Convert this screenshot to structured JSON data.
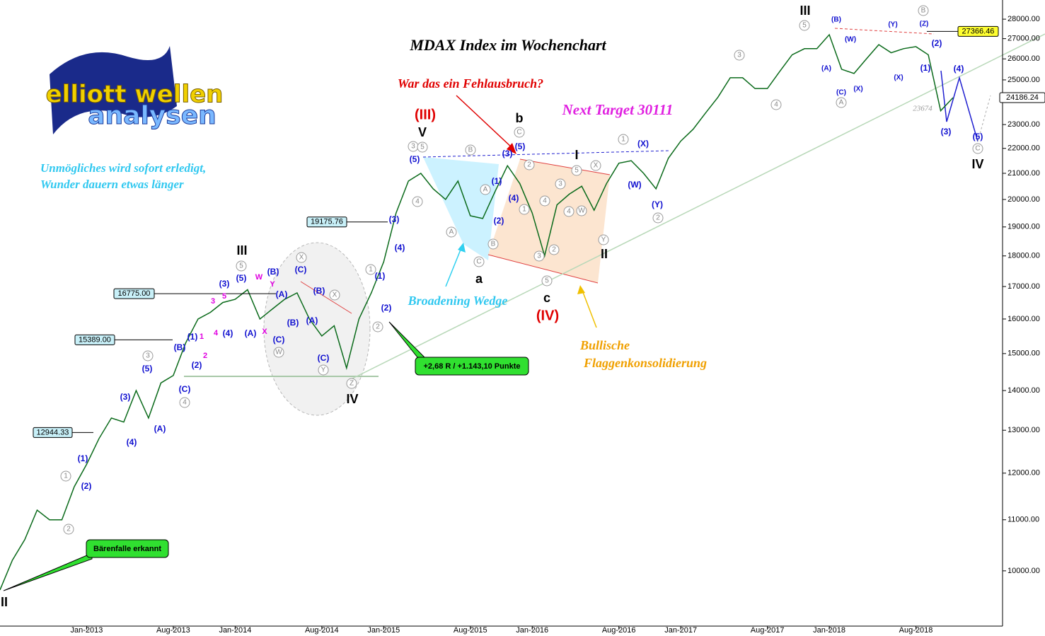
{
  "chart_data": {
    "type": "line",
    "title": "MDAX Index im Wochenchart",
    "color": "#0a6a1a",
    "log_scale": true,
    "x": [
      "2012-06",
      "2012-07",
      "2012-08",
      "2012-09",
      "2012-10",
      "2012-11",
      "2012-12",
      "2013-01",
      "2013-02",
      "2013-03",
      "2013-04",
      "2013-05",
      "2013-06",
      "2013-07",
      "2013-08",
      "2013-09",
      "2013-10",
      "2013-11",
      "2013-12",
      "2014-01",
      "2014-02",
      "2014-03",
      "2014-04",
      "2014-05",
      "2014-06",
      "2014-07",
      "2014-08",
      "2014-09",
      "2014-10",
      "2014-11",
      "2014-12",
      "2015-01",
      "2015-02",
      "2015-03",
      "2015-04",
      "2015-05",
      "2015-06",
      "2015-07",
      "2015-08",
      "2015-09",
      "2015-10",
      "2015-11",
      "2015-12",
      "2016-01",
      "2016-02",
      "2016-03",
      "2016-04",
      "2016-05",
      "2016-06",
      "2016-07",
      "2016-08",
      "2016-09",
      "2016-10",
      "2016-11",
      "2016-12",
      "2017-01",
      "2017-02",
      "2017-03",
      "2017-04",
      "2017-05",
      "2017-06",
      "2017-07",
      "2017-08",
      "2017-09",
      "2017-10",
      "2017-11",
      "2017-12",
      "2018-01",
      "2018-02",
      "2018-03",
      "2018-04",
      "2018-05",
      "2018-06",
      "2018-07",
      "2018-08",
      "2018-09",
      "2018-10",
      "2018-11"
    ],
    "values": [
      9650,
      10200,
      10600,
      11200,
      11000,
      11000,
      11700,
      12200,
      12800,
      13300,
      13200,
      14000,
      13300,
      14200,
      14400,
      15300,
      16000,
      16200,
      16500,
      16600,
      16900,
      16000,
      16300,
      16600,
      16800,
      16000,
      15500,
      15800,
      14600,
      16000,
      16800,
      17800,
      19500,
      20700,
      21000,
      20400,
      20000,
      20700,
      19400,
      19300,
      20300,
      21300,
      20600,
      19500,
      18000,
      19800,
      20200,
      20500,
      19600,
      20600,
      21400,
      21500,
      21000,
      20400,
      21600,
      22300,
      22800,
      23500,
      24200,
      25100,
      25100,
      24600,
      24600,
      25400,
      26200,
      26500,
      26500,
      27200,
      25500,
      25300,
      26000,
      26700,
      26300,
      26500,
      26600,
      26200,
      23600,
      24186
    ],
    "xlim": [
      "2012-06",
      "2019-03"
    ],
    "xticks": [
      {
        "value": "2013-01",
        "label": "Jan-2013"
      },
      {
        "value": "2013-08",
        "label": "Aug-2013"
      },
      {
        "value": "2014-01",
        "label": "Jan-2014"
      },
      {
        "value": "2014-08",
        "label": "Aug-2014"
      },
      {
        "value": "2015-01",
        "label": "Jan-2015"
      },
      {
        "value": "2015-08",
        "label": "Aug-2015"
      },
      {
        "value": "2016-01",
        "label": "Jan-2016"
      },
      {
        "value": "2016-08",
        "label": "Aug-2016"
      },
      {
        "value": "2017-01",
        "label": "Jan-2017"
      },
      {
        "value": "2017-08",
        "label": "Aug-2017"
      },
      {
        "value": "2018-01",
        "label": "Jan-2018"
      },
      {
        "value": "2018-08",
        "label": "Aug-2018"
      }
    ],
    "ylim": [
      9020,
      29020
    ],
    "yticks": [
      {
        "value": 10000,
        "label": "10000.00"
      },
      {
        "value": 11000,
        "label": "11000.00"
      },
      {
        "value": 12000,
        "label": "12000.00"
      },
      {
        "value": 13000,
        "label": "13000.00"
      },
      {
        "value": 14000,
        "label": "14000.00"
      },
      {
        "value": 15000,
        "label": "15000.00"
      },
      {
        "value": 16000,
        "label": "16000.00"
      },
      {
        "value": 17000,
        "label": "17000.00"
      },
      {
        "value": 18000,
        "label": "18000.00"
      },
      {
        "value": 19000,
        "label": "19000.00"
      },
      {
        "value": 20000,
        "label": "20000.00"
      },
      {
        "value": 21000,
        "label": "21000.00"
      },
      {
        "value": 22000,
        "label": "22000.00"
      },
      {
        "value": 23000,
        "label": "23000.00"
      },
      {
        "value": 25000,
        "label": "25000.00"
      },
      {
        "value": 26000,
        "label": "26000.00"
      },
      {
        "value": 27000,
        "label": "27000.00"
      },
      {
        "value": 28000,
        "label": "28000.00"
      }
    ],
    "levels": [
      {
        "value": 12944.33,
        "label": "12944.33"
      },
      {
        "value": 15389,
        "label": "15389.00"
      },
      {
        "value": 16775,
        "label": "16775.00"
      },
      {
        "value": 19175.76,
        "label": "19175.76"
      },
      {
        "value": 27366.46,
        "label": "27366.46"
      },
      {
        "value": 24186.24,
        "label": "24186.24"
      },
      {
        "value": 23674,
        "label": "23674"
      }
    ],
    "wave_labels": [
      "II",
      "III",
      "IV",
      "V",
      "(III)",
      "(IV)",
      "a",
      "b",
      "c",
      "I",
      "II",
      "III",
      "IV",
      "(1)",
      "(2)",
      "(3)",
      "(4)",
      "(5)",
      "(A)",
      "(B)",
      "(C)",
      "(1)",
      "(2)",
      "(3)",
      "(4)",
      "(5)",
      "(A)",
      "(B)",
      "(A)",
      "(C)",
      "(B)",
      "(C)",
      "(B)",
      "(A)",
      "(C)",
      "(1)",
      "(2)",
      "(3)",
      "(4)",
      "(5)",
      "(1)",
      "(2)",
      "(3)",
      "(4)",
      "(5)",
      "(X)",
      "(W)",
      "(Y)",
      "(W)",
      "(A)",
      "(B)",
      "(C)",
      "(X)",
      "(Y)",
      "(X)",
      "(Z)",
      "(2)",
      "(1)",
      "(3)",
      "(4)",
      "(5)",
      "1",
      "2",
      "3",
      "4",
      "5",
      "X",
      "X",
      "W",
      "Y",
      "Z",
      "1",
      "2",
      "3",
      "5",
      "4",
      "A",
      "B",
      "A",
      "B",
      "C",
      "C",
      "2",
      "1",
      "4",
      "3",
      "2",
      "5",
      "3",
      "5",
      "X",
      "4",
      "W",
      "Y",
      "1",
      "2",
      "3",
      "4",
      "5",
      "A",
      "B",
      "C",
      "W",
      "Y",
      "X",
      "3",
      "5",
      "4",
      "1",
      "2"
    ]
  },
  "texts": [
    "War das ein Fehlausbruch?",
    "Next Target 30111",
    "Unmögliches wird sofort erledigt,",
    "Wunder dauern etwas länger",
    "Broadening Wedge",
    "Bullische",
    "Flaggenkonsolidierung"
  ],
  "callouts": [
    "+2,68 R / +1.143,10 Punkte",
    "Bärenfalle erkannt"
  ],
  "logo": {
    "line1": "elliott wellen",
    "line2": "analysen"
  }
}
